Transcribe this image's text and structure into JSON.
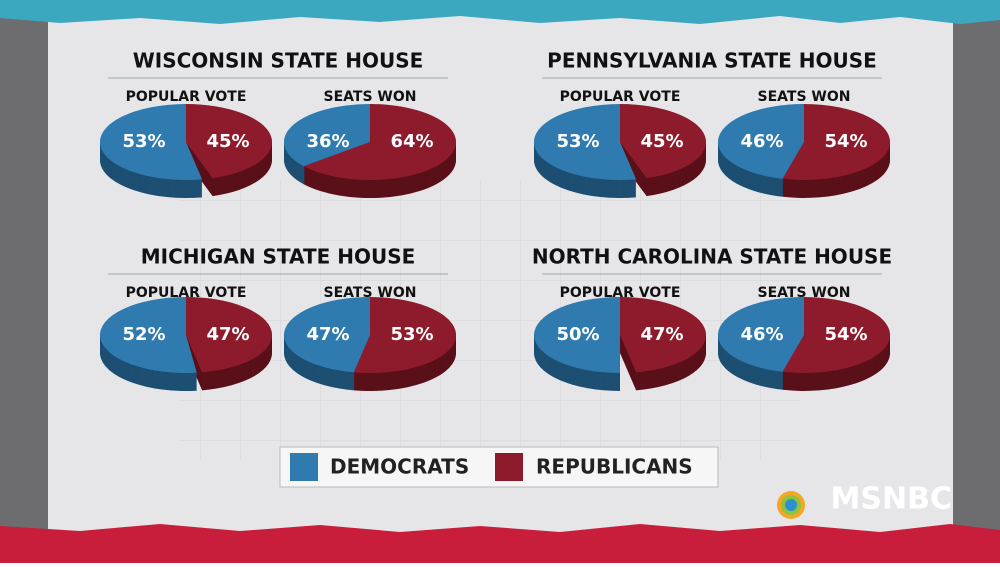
{
  "chart_data": [
    {
      "type": "pie",
      "title": "WISCONSIN STATE HOUSE",
      "pies": [
        {
          "title": "POPULAR VOTE",
          "values": [
            53,
            45
          ],
          "value_labels": [
            "53%",
            "45%"
          ]
        },
        {
          "title": "SEATS WON",
          "values": [
            36,
            64
          ],
          "value_labels": [
            "36%",
            "64%"
          ]
        }
      ]
    },
    {
      "type": "pie",
      "title": "PENNSYLVANIA STATE HOUSE",
      "pies": [
        {
          "title": "POPULAR VOTE",
          "values": [
            53,
            45
          ],
          "value_labels": [
            "53%",
            "45%"
          ]
        },
        {
          "title": "SEATS WON",
          "values": [
            46,
            54
          ],
          "value_labels": [
            "46%",
            "54%"
          ]
        }
      ]
    },
    {
      "type": "pie",
      "title": "MICHIGAN STATE HOUSE",
      "pies": [
        {
          "title": "POPULAR VOTE",
          "values": [
            52,
            47
          ],
          "value_labels": [
            "52%",
            "47%"
          ]
        },
        {
          "title": "SEATS WON",
          "values": [
            47,
            53
          ],
          "value_labels": [
            "47%",
            "53%"
          ]
        }
      ]
    },
    {
      "type": "pie",
      "title": "NORTH CAROLINA STATE HOUSE",
      "pies": [
        {
          "title": "POPULAR VOTE",
          "values": [
            50,
            47
          ],
          "value_labels": [
            "50%",
            "47%"
          ]
        },
        {
          "title": "SEATS WON",
          "values": [
            46,
            54
          ],
          "value_labels": [
            "46%",
            "54%"
          ]
        }
      ]
    }
  ],
  "legend": {
    "names": [
      "DEMOCRATS",
      "REPUBLICANS"
    ],
    "colors": [
      "#2f7bb0",
      "#8e1b2c"
    ],
    "side_colors": [
      "#1d4f72",
      "#5a1019"
    ]
  },
  "logo": "MSNBC"
}
